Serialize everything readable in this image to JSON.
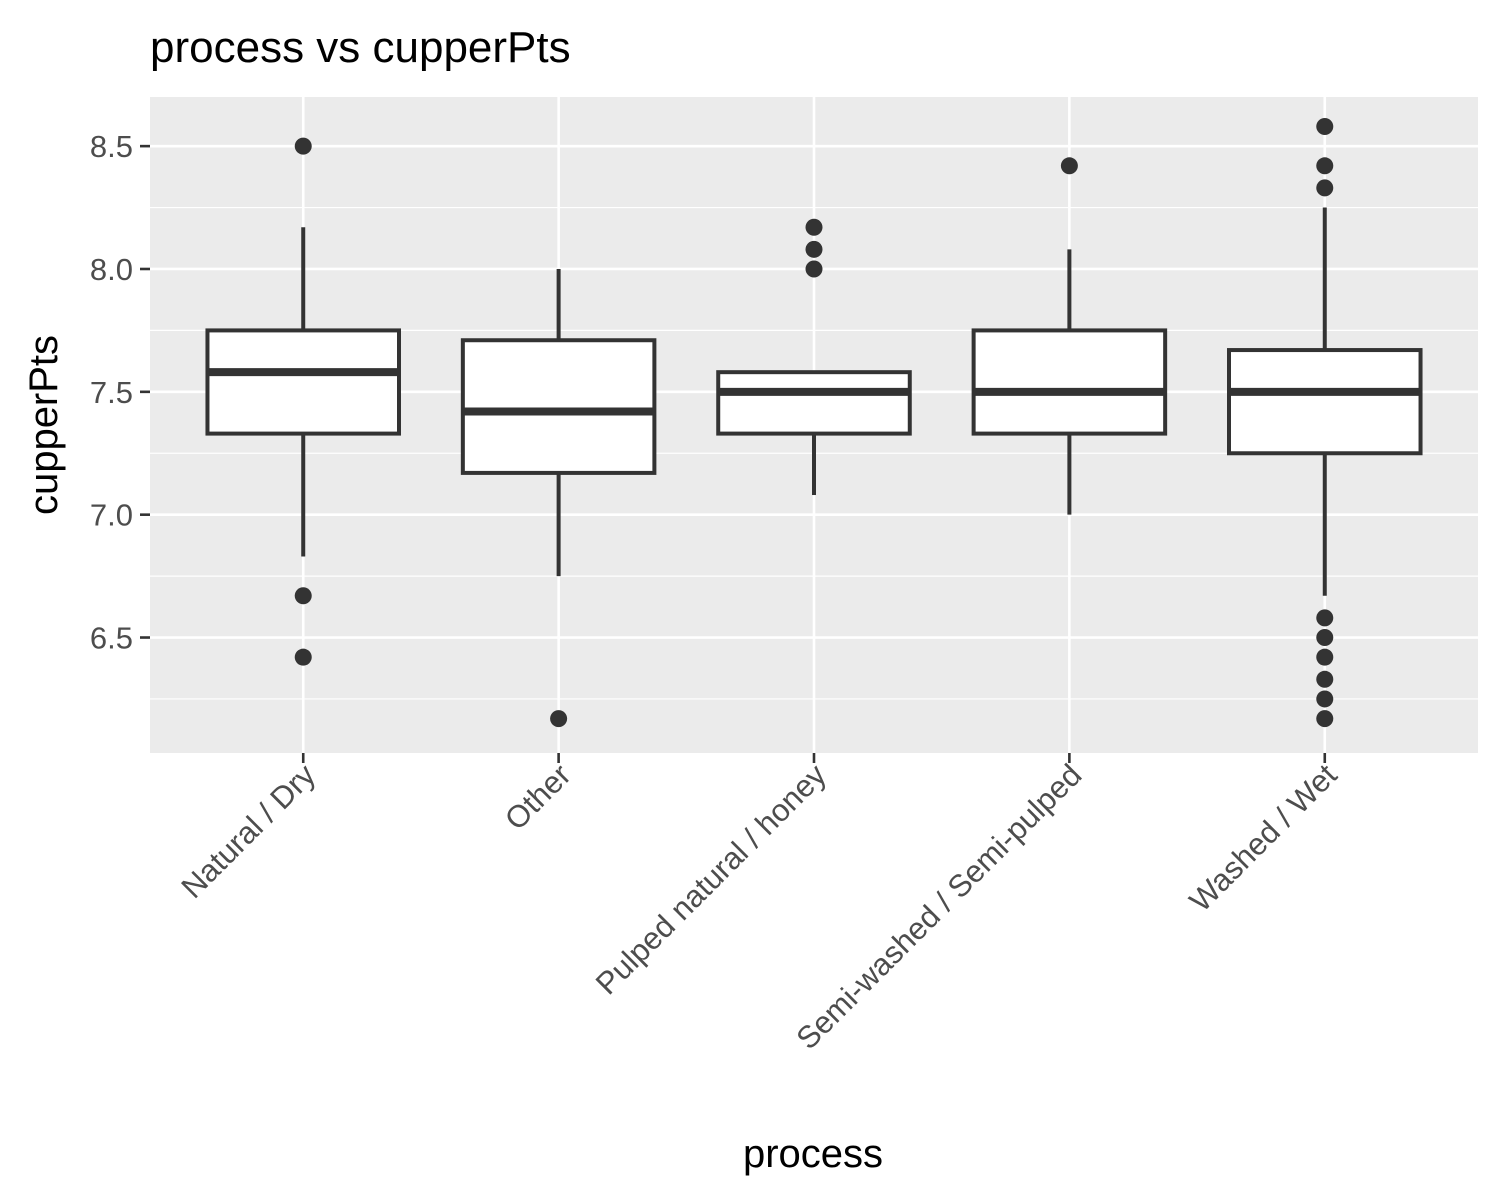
{
  "chart_data": {
    "type": "boxplot",
    "title": "process vs cupperPts",
    "xlabel": "process",
    "ylabel": "cupperPts",
    "ylim": [
      6.03,
      8.7
    ],
    "yticks": [
      6.5,
      7.0,
      7.5,
      8.0,
      8.5
    ],
    "ytick_labels": [
      "6.5",
      "7.0",
      "7.5",
      "8.0",
      "8.5"
    ],
    "categories": [
      "Natural / Dry",
      "Other",
      "Pulped natural / honey",
      "Semi-washed / Semi-pulped",
      "Washed / Wet"
    ],
    "boxes": [
      {
        "category": "Natural / Dry",
        "whisker_low": 6.83,
        "q1": 7.33,
        "median": 7.58,
        "q3": 7.75,
        "whisker_high": 8.17,
        "outliers": [
          8.5,
          6.67,
          6.42
        ]
      },
      {
        "category": "Other",
        "whisker_low": 6.75,
        "q1": 7.17,
        "median": 7.42,
        "q3": 7.71,
        "whisker_high": 8.0,
        "outliers": [
          6.17
        ]
      },
      {
        "category": "Pulped natural / honey",
        "whisker_low": 7.08,
        "q1": 7.33,
        "median": 7.5,
        "q3": 7.58,
        "whisker_high": 7.58,
        "outliers": [
          8.17,
          8.08,
          8.0
        ]
      },
      {
        "category": "Semi-washed / Semi-pulped",
        "whisker_low": 7.0,
        "q1": 7.33,
        "median": 7.5,
        "q3": 7.75,
        "whisker_high": 8.08,
        "outliers": [
          8.42
        ]
      },
      {
        "category": "Washed / Wet",
        "whisker_low": 6.67,
        "q1": 7.25,
        "median": 7.5,
        "q3": 7.67,
        "whisker_high": 8.25,
        "outliers": [
          8.58,
          8.42,
          8.33,
          6.58,
          6.5,
          6.42,
          6.33,
          6.25,
          6.17
        ]
      }
    ],
    "grid": true,
    "colors": {
      "panel": "#ebebeb",
      "grid": "#ffffff",
      "box_fill": "#ffffff",
      "box_stroke": "#333333",
      "point": "#333333"
    }
  }
}
